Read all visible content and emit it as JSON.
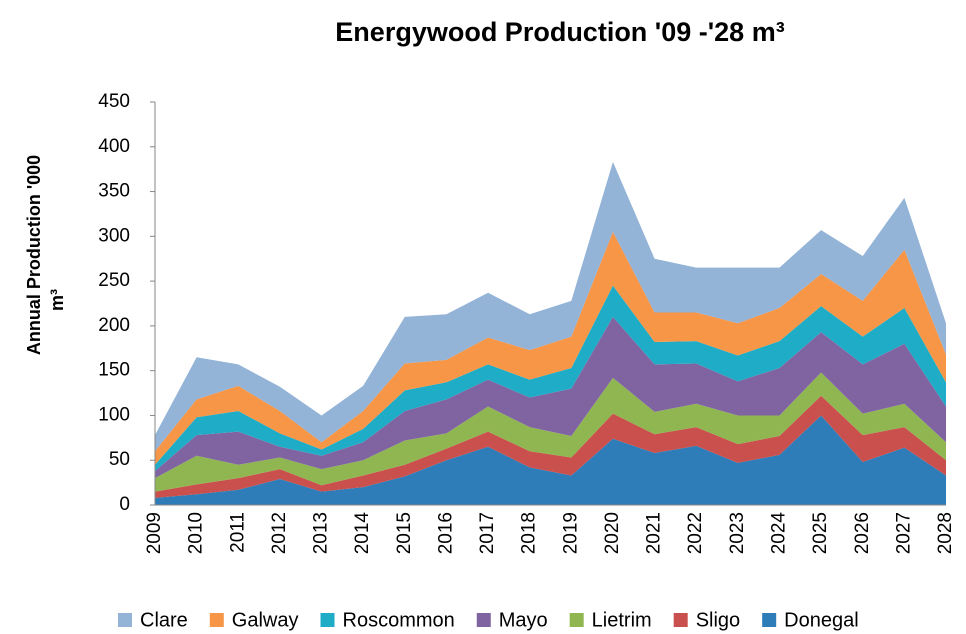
{
  "chart_data": {
    "type": "stacked_area",
    "title": "Energywood Production '09 -'28 m³",
    "ylabel": [
      "Annual Production '000",
      "m³"
    ],
    "categories": [
      "2009",
      "2010",
      "2011",
      "2012",
      "2013",
      "2014",
      "2015",
      "2016",
      "2017",
      "2018",
      "2019",
      "2020",
      "2021",
      "2022",
      "2023",
      "2024",
      "2025",
      "2026",
      "2027",
      "2028"
    ],
    "series": [
      {
        "name": "Clare",
        "color": "#93b3d7",
        "values": [
          18,
          47,
          24,
          27,
          30,
          28,
          52,
          51,
          50,
          40,
          40,
          78,
          60,
          50,
          62,
          45,
          49,
          50,
          58,
          35
        ]
      },
      {
        "name": "Galway",
        "color": "#f79646",
        "values": [
          15,
          20,
          28,
          25,
          8,
          20,
          30,
          25,
          30,
          33,
          35,
          60,
          33,
          32,
          36,
          37,
          36,
          40,
          65,
          31
        ]
      },
      {
        "name": "Roscommon",
        "color": "#1eacc6",
        "values": [
          7,
          20,
          23,
          15,
          7,
          15,
          23,
          19,
          17,
          20,
          23,
          35,
          25,
          25,
          29,
          30,
          29,
          31,
          40,
          27
        ]
      },
      {
        "name": "Mayo",
        "color": "#8064a2",
        "values": [
          8,
          23,
          37,
          12,
          15,
          20,
          33,
          38,
          30,
          33,
          53,
          68,
          53,
          45,
          38,
          53,
          45,
          55,
          67,
          40
        ]
      },
      {
        "name": "Lietrim",
        "color": "#8fb651",
        "values": [
          15,
          32,
          15,
          13,
          18,
          17,
          27,
          17,
          28,
          27,
          24,
          40,
          25,
          26,
          32,
          23,
          26,
          24,
          26,
          20
        ]
      },
      {
        "name": "Sligo",
        "color": "#c9504d",
        "values": [
          7,
          11,
          13,
          11,
          7,
          13,
          13,
          13,
          17,
          18,
          20,
          28,
          21,
          21,
          21,
          21,
          22,
          30,
          23,
          17
        ]
      },
      {
        "name": "Donegal",
        "color": "#2e7cb8",
        "values": [
          8,
          12,
          17,
          29,
          15,
          20,
          32,
          50,
          65,
          42,
          33,
          74,
          58,
          66,
          47,
          56,
          100,
          48,
          64,
          33
        ]
      }
    ],
    "ylim": [
      0,
      450
    ],
    "yticks": [
      0,
      50,
      100,
      150,
      200,
      250,
      300,
      350,
      400,
      450
    ],
    "grid": false,
    "legend": "bottom"
  }
}
